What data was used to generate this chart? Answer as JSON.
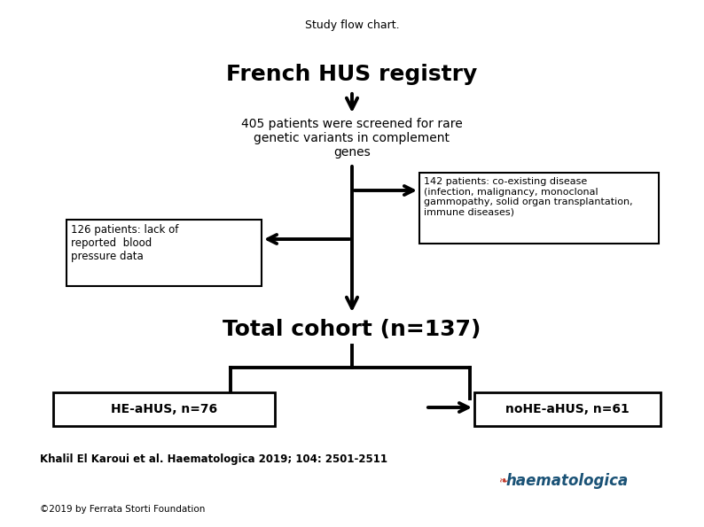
{
  "title": "Study flow chart.",
  "title_fontsize": 9,
  "bg_color": "#ffffff",
  "lw": 2.8,
  "french_hus_text": "French HUS registry",
  "french_hus_fontsize": 18,
  "screened_text": "405 patients were screened for rare\ngenetic variants in complement\ngenes",
  "screened_fontsize": 10,
  "coexisting_text": "142 patients: co-existing disease\n(infection, malignancy, monoclonal\ngammopathy, solid organ transplantation,\nimmune diseases)",
  "coexisting_fontsize": 8.0,
  "lack_bp_text": "126 patients: lack of\nreported  blood\npressure data",
  "lack_bp_fontsize": 8.5,
  "total_cohort_text": "Total cohort (n=137)",
  "total_cohort_fontsize": 18,
  "he_ahus_text": "HE-aHUS, n=76",
  "he_ahus_fontsize": 10,
  "no_he_ahus_text": "noHE-aHUS, n=61",
  "no_he_ahus_fontsize": 10,
  "citation_text": "Khalil El Karoui et al. Haematologica 2019; 104: 2501-2511",
  "citation_fontsize": 8.5,
  "footer_text": "©2019 by Ferrata Storti Foundation",
  "footer_fontsize": 7.5,
  "logo_text": "haematologica",
  "logo_fontsize": 12
}
